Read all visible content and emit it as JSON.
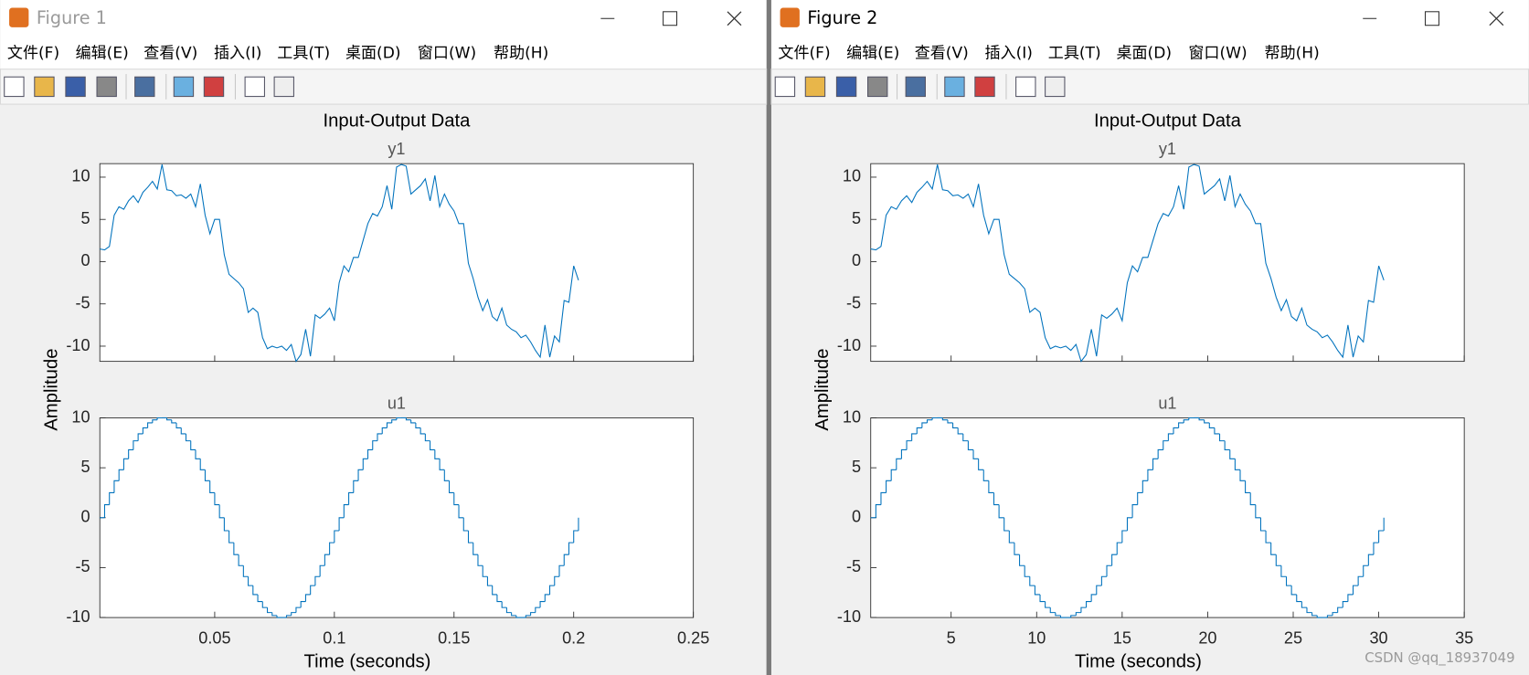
{
  "windows": [
    {
      "title": "Figure 1",
      "menu": [
        "文件(F)",
        "编辑(E)",
        "查看(V)",
        "插入(I)",
        "工具(T)",
        "桌面(D)",
        "窗口(W)",
        "帮助(H)"
      ],
      "figure": {
        "title": "Input-Output Data",
        "ylabel": "Amplitude",
        "xlabel": "Time (seconds)",
        "x": [
          0.002,
          0.004,
          0.006,
          0.008,
          0.01,
          0.012,
          0.014,
          0.016,
          0.018,
          0.02,
          0.022,
          0.024,
          0.026,
          0.028,
          0.03,
          0.032,
          0.034,
          0.036,
          0.038,
          0.04,
          0.042,
          0.044,
          0.046,
          0.048,
          0.05,
          0.052,
          0.054,
          0.056,
          0.058,
          0.06,
          0.062,
          0.064,
          0.066,
          0.068,
          0.07,
          0.072,
          0.074,
          0.076,
          0.078,
          0.08,
          0.082,
          0.084,
          0.086,
          0.088,
          0.09,
          0.092,
          0.094,
          0.096,
          0.098,
          0.1,
          0.102,
          0.104,
          0.106,
          0.108,
          0.11,
          0.112,
          0.114,
          0.116,
          0.118,
          0.12,
          0.122,
          0.124,
          0.126,
          0.128,
          0.13,
          0.132,
          0.134,
          0.136,
          0.138,
          0.14,
          0.142,
          0.144,
          0.146,
          0.148,
          0.15,
          0.152,
          0.154,
          0.156,
          0.158,
          0.16,
          0.162,
          0.164,
          0.166,
          0.168,
          0.17,
          0.172,
          0.174,
          0.176,
          0.178,
          0.18,
          0.182,
          0.184,
          0.186,
          0.188,
          0.19,
          0.192,
          0.194,
          0.196,
          0.198,
          0.2,
          0.202
        ],
        "xlim": [
          0.002,
          0.25
        ],
        "xticks": [
          0.05,
          0.1,
          0.15,
          0.2,
          0.25
        ],
        "subplots": [
          {
            "type": "line",
            "title": "y1",
            "color": "#0072bd",
            "ylim": [
              -11.8,
              11.6
            ],
            "yticks": [
              -10,
              -5,
              0,
              5,
              10
            ],
            "values": [
              1.5,
              1.4,
              1.8,
              5.5,
              6.5,
              6.2,
              7.2,
              7.8,
              7.0,
              8.2,
              8.8,
              9.5,
              8.6,
              11.5,
              8.5,
              8.4,
              7.8,
              7.9,
              7.5,
              8.0,
              6.5,
              9.2,
              5.5,
              3.3,
              5.0,
              5.0,
              0.8,
              -1.5,
              -2.0,
              -2.5,
              -3.2,
              -6.0,
              -5.5,
              -6.0,
              -9.0,
              -10.3,
              -10.0,
              -10.2,
              -10.0,
              -10.5,
              -9.8,
              -11.8,
              -11.0,
              -8.0,
              -11.2,
              -6.3,
              -6.7,
              -6.2,
              -5.5,
              -7.0,
              -2.5,
              -0.5,
              -1.2,
              0.5,
              0.5,
              2.5,
              4.5,
              5.7,
              5.4,
              6.5,
              9.0,
              6.2,
              11.2,
              11.5,
              11.3,
              8.0,
              8.5,
              9.0,
              9.8,
              7.2,
              10.2,
              6.5,
              8.0,
              6.8,
              6.0,
              4.5,
              4.5,
              -0.2,
              -2.0,
              -4.2,
              -5.8,
              -4.5,
              -6.5,
              -7.0,
              -5.5,
              -7.5,
              -8.0,
              -8.3,
              -9.0,
              -8.7,
              -9.5,
              -10.5,
              -11.3,
              -7.5,
              -11.3,
              -8.8,
              -9.5,
              -4.6,
              -4.8,
              -0.5,
              -2.2
            ]
          },
          {
            "type": "stairs",
            "title": "u1",
            "color": "#0072bd",
            "ylim": [
              -10,
              10
            ],
            "yticks": [
              -10,
              -5,
              0,
              5,
              10
            ],
            "values": [
              0,
              1.3,
              2.5,
              3.7,
              4.8,
              5.9,
              6.8,
              7.7,
              8.4,
              9,
              9.5,
              9.8,
              10,
              10,
              9.8,
              9.5,
              9,
              8.4,
              7.7,
              6.8,
              5.9,
              4.8,
              3.7,
              2.5,
              1.3,
              0,
              -1.3,
              -2.5,
              -3.7,
              -4.8,
              -5.9,
              -6.8,
              -7.7,
              -8.4,
              -9,
              -9.5,
              -9.8,
              -10,
              -10,
              -9.8,
              -9.5,
              -9,
              -8.4,
              -7.7,
              -6.8,
              -5.9,
              -4.8,
              -3.7,
              -2.5,
              -1.3,
              0,
              1.3,
              2.5,
              3.7,
              4.8,
              5.9,
              6.8,
              7.7,
              8.4,
              9,
              9.5,
              9.8,
              10,
              10,
              9.8,
              9.5,
              9,
              8.4,
              7.7,
              6.8,
              5.9,
              4.8,
              3.7,
              2.5,
              1.3,
              0,
              -1.3,
              -2.5,
              -3.7,
              -4.8,
              -5.9,
              -6.8,
              -7.7,
              -8.4,
              -9,
              -9.5,
              -9.8,
              -10,
              -10,
              -9.8,
              -9.5,
              -9,
              -8.4,
              -7.7,
              -6.8,
              -5.9,
              -4.8,
              -3.7,
              -2.5,
              -1.3,
              0
            ]
          }
        ]
      }
    },
    {
      "title": "Figure 2",
      "menu": [
        "文件(F)",
        "编辑(E)",
        "查看(V)",
        "插入(I)",
        "工具(T)",
        "桌面(D)",
        "窗口(W)",
        "帮助(H)"
      ],
      "figure": {
        "title": "Input-Output Data",
        "ylabel": "Amplitude",
        "xlabel": "Time (seconds)",
        "x": [
          0.3,
          0.6,
          0.9,
          1.2,
          1.5,
          1.8,
          2.1,
          2.4,
          2.7,
          3,
          3.3,
          3.6,
          3.9,
          4.2,
          4.5,
          4.8,
          5.1,
          5.4,
          5.7,
          6,
          6.3,
          6.6,
          6.9,
          7.2,
          7.5,
          7.8,
          8.1,
          8.4,
          8.7,
          9,
          9.3,
          9.6,
          9.9,
          10.2,
          10.5,
          10.8,
          11.1,
          11.4,
          11.7,
          12,
          12.3,
          12.6,
          12.9,
          13.2,
          13.5,
          13.8,
          14.1,
          14.4,
          14.7,
          15,
          15.3,
          15.6,
          15.9,
          16.2,
          16.5,
          16.8,
          17.1,
          17.4,
          17.7,
          18,
          18.3,
          18.6,
          18.9,
          19.2,
          19.5,
          19.8,
          20.1,
          20.4,
          20.7,
          21,
          21.3,
          21.6,
          21.9,
          22.2,
          22.5,
          22.8,
          23.1,
          23.4,
          23.7,
          24,
          24.3,
          24.6,
          24.9,
          25.2,
          25.5,
          25.8,
          26.1,
          26.4,
          26.7,
          27,
          27.3,
          27.6,
          27.9,
          28.2,
          28.5,
          28.8,
          29.1,
          29.4,
          29.7,
          30,
          30.3
        ],
        "xlim": [
          0.3,
          35
        ],
        "xticks": [
          5,
          10,
          15,
          20,
          25,
          30,
          35
        ],
        "subplots": [
          {
            "type": "line",
            "title": "y1",
            "color": "#0072bd",
            "ylim": [
              -11.8,
              11.6
            ],
            "yticks": [
              -10,
              -5,
              0,
              5,
              10
            ],
            "values": [
              1.5,
              1.4,
              1.8,
              5.5,
              6.5,
              6.2,
              7.2,
              7.8,
              7.0,
              8.2,
              8.8,
              9.5,
              8.6,
              11.5,
              8.5,
              8.4,
              7.8,
              7.9,
              7.5,
              8.0,
              6.5,
              9.2,
              5.5,
              3.3,
              5.0,
              5.0,
              0.8,
              -1.5,
              -2.0,
              -2.5,
              -3.2,
              -6.0,
              -5.5,
              -6.0,
              -9.0,
              -10.3,
              -10.0,
              -10.2,
              -10.0,
              -10.5,
              -9.8,
              -11.8,
              -11.0,
              -8.0,
              -11.2,
              -6.3,
              -6.7,
              -6.2,
              -5.5,
              -7.0,
              -2.5,
              -0.5,
              -1.2,
              0.5,
              0.5,
              2.5,
              4.5,
              5.7,
              5.4,
              6.5,
              9.0,
              6.2,
              11.2,
              11.5,
              11.3,
              8.0,
              8.5,
              9.0,
              9.8,
              7.2,
              10.2,
              6.5,
              8.0,
              6.8,
              6.0,
              4.5,
              4.5,
              -0.2,
              -2.0,
              -4.2,
              -5.8,
              -4.5,
              -6.5,
              -7.0,
              -5.5,
              -7.5,
              -8.0,
              -8.3,
              -9.0,
              -8.7,
              -9.5,
              -10.5,
              -11.3,
              -7.5,
              -11.3,
              -8.8,
              -9.5,
              -4.6,
              -4.8,
              -0.5,
              -2.2
            ]
          },
          {
            "type": "stairs",
            "title": "u1",
            "color": "#0072bd",
            "ylim": [
              -10,
              10
            ],
            "yticks": [
              -10,
              -5,
              0,
              5,
              10
            ],
            "values": [
              0,
              1.3,
              2.5,
              3.7,
              4.8,
              5.9,
              6.8,
              7.7,
              8.4,
              9,
              9.5,
              9.8,
              10,
              10,
              9.8,
              9.5,
              9,
              8.4,
              7.7,
              6.8,
              5.9,
              4.8,
              3.7,
              2.5,
              1.3,
              0,
              -1.3,
              -2.5,
              -3.7,
              -4.8,
              -5.9,
              -6.8,
              -7.7,
              -8.4,
              -9,
              -9.5,
              -9.8,
              -10,
              -10,
              -9.8,
              -9.5,
              -9,
              -8.4,
              -7.7,
              -6.8,
              -5.9,
              -4.8,
              -3.7,
              -2.5,
              -1.3,
              0,
              1.3,
              2.5,
              3.7,
              4.8,
              5.9,
              6.8,
              7.7,
              8.4,
              9,
              9.5,
              9.8,
              10,
              10,
              9.8,
              9.5,
              9,
              8.4,
              7.7,
              6.8,
              5.9,
              4.8,
              3.7,
              2.5,
              1.3,
              0,
              -1.3,
              -2.5,
              -3.7,
              -4.8,
              -5.9,
              -6.8,
              -7.7,
              -8.4,
              -9,
              -9.5,
              -9.8,
              -10,
              -10,
              -9.8,
              -9.5,
              -9,
              -8.4,
              -7.7,
              -6.8,
              -5.9,
              -4.8,
              -3.7,
              -2.5,
              -1.3,
              0
            ]
          }
        ]
      }
    }
  ],
  "watermark": "CSDN @qq_18937049"
}
